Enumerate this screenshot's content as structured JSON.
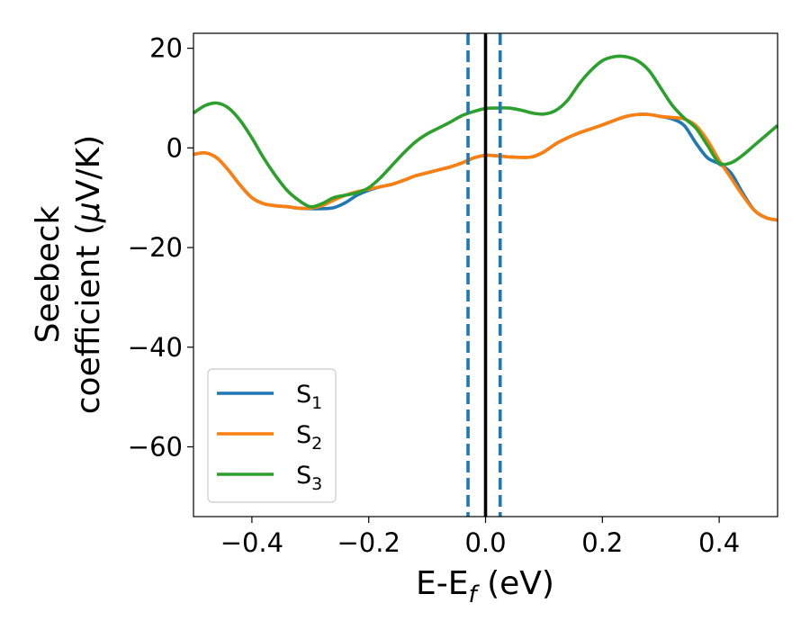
{
  "chart_data": {
    "type": "line",
    "xlabel": "E-E",
    "xlabel_sub": "f",
    "xlabel_unit": " (eV)",
    "ylabel_line1": "Seebeck",
    "ylabel_line2": "coefficient  (",
    "ylabel_mu": "μ",
    "ylabel_unit": "V/K)",
    "xlim": [
      -0.5,
      0.5
    ],
    "ylim": [
      -74,
      23
    ],
    "x_ticks": [
      -0.4,
      -0.2,
      0.0,
      0.2,
      0.4
    ],
    "x_tick_labels": [
      "−0.4",
      "−0.2",
      "0.0",
      "0.2",
      "0.4"
    ],
    "y_ticks": [
      20,
      0,
      -20,
      -40,
      -60
    ],
    "y_tick_labels": [
      "20",
      "0",
      "−20",
      "−40",
      "−60"
    ],
    "grid": false,
    "legend_position": "lower-left",
    "vlines": [
      {
        "x": 0.0,
        "style": "solid",
        "color": "#000000"
      },
      {
        "x": -0.03,
        "style": "dashed",
        "color": "#1f77b4"
      },
      {
        "x": 0.025,
        "style": "dashed",
        "color": "#1f77b4"
      }
    ],
    "series": [
      {
        "name": "S",
        "sub": "1",
        "color": "#1f77b4",
        "points": [
          [
            -0.5,
            -1.3
          ],
          [
            -0.48,
            -1.0
          ],
          [
            -0.46,
            -2.0
          ],
          [
            -0.44,
            -4.5
          ],
          [
            -0.42,
            -7.5
          ],
          [
            -0.4,
            -10.0
          ],
          [
            -0.38,
            -11.2
          ],
          [
            -0.36,
            -11.6
          ],
          [
            -0.34,
            -11.8
          ],
          [
            -0.32,
            -12.1
          ],
          [
            -0.3,
            -12.2
          ],
          [
            -0.28,
            -12.2
          ],
          [
            -0.26,
            -12.0
          ],
          [
            -0.24,
            -11.0
          ],
          [
            -0.22,
            -9.5
          ],
          [
            -0.2,
            -8.5
          ],
          [
            -0.18,
            -7.8
          ],
          [
            -0.16,
            -7.3
          ],
          [
            -0.14,
            -6.5
          ],
          [
            -0.12,
            -5.6
          ],
          [
            -0.1,
            -5.0
          ],
          [
            -0.08,
            -4.4
          ],
          [
            -0.06,
            -3.8
          ],
          [
            -0.04,
            -3.0
          ],
          [
            -0.02,
            -2.0
          ],
          [
            0.0,
            -1.5
          ],
          [
            0.02,
            -1.6
          ],
          [
            0.04,
            -1.8
          ],
          [
            0.06,
            -1.9
          ],
          [
            0.08,
            -1.8
          ],
          [
            0.1,
            -0.8
          ],
          [
            0.12,
            0.8
          ],
          [
            0.14,
            2.0
          ],
          [
            0.16,
            3.0
          ],
          [
            0.18,
            3.8
          ],
          [
            0.2,
            4.6
          ],
          [
            0.22,
            5.5
          ],
          [
            0.24,
            6.3
          ],
          [
            0.26,
            6.7
          ],
          [
            0.28,
            6.7
          ],
          [
            0.3,
            6.3
          ],
          [
            0.32,
            5.8
          ],
          [
            0.34,
            4.5
          ],
          [
            0.36,
            1.0
          ],
          [
            0.38,
            -2.0
          ],
          [
            0.4,
            -3.2
          ],
          [
            0.42,
            -5.0
          ],
          [
            0.44,
            -9.0
          ],
          [
            0.46,
            -12.5
          ],
          [
            0.48,
            -14.0
          ],
          [
            0.5,
            -14.5
          ]
        ]
      },
      {
        "name": "S",
        "sub": "2",
        "color": "#ff7f0e",
        "points": [
          [
            -0.5,
            -1.3
          ],
          [
            -0.48,
            -1.0
          ],
          [
            -0.46,
            -2.0
          ],
          [
            -0.44,
            -4.5
          ],
          [
            -0.42,
            -7.5
          ],
          [
            -0.4,
            -10.0
          ],
          [
            -0.38,
            -11.2
          ],
          [
            -0.36,
            -11.6
          ],
          [
            -0.34,
            -11.8
          ],
          [
            -0.32,
            -12.1
          ],
          [
            -0.3,
            -12.1
          ],
          [
            -0.28,
            -11.6
          ],
          [
            -0.26,
            -10.5
          ],
          [
            -0.24,
            -9.5
          ],
          [
            -0.22,
            -8.8
          ],
          [
            -0.2,
            -8.3
          ],
          [
            -0.18,
            -7.8
          ],
          [
            -0.16,
            -7.3
          ],
          [
            -0.14,
            -6.5
          ],
          [
            -0.12,
            -5.6
          ],
          [
            -0.1,
            -5.0
          ],
          [
            -0.08,
            -4.4
          ],
          [
            -0.06,
            -3.8
          ],
          [
            -0.04,
            -3.0
          ],
          [
            -0.02,
            -2.0
          ],
          [
            0.0,
            -1.5
          ],
          [
            0.02,
            -1.6
          ],
          [
            0.04,
            -1.8
          ],
          [
            0.06,
            -1.9
          ],
          [
            0.08,
            -1.8
          ],
          [
            0.1,
            -0.8
          ],
          [
            0.12,
            0.8
          ],
          [
            0.14,
            2.0
          ],
          [
            0.16,
            3.0
          ],
          [
            0.18,
            3.8
          ],
          [
            0.2,
            4.6
          ],
          [
            0.22,
            5.5
          ],
          [
            0.24,
            6.3
          ],
          [
            0.26,
            6.7
          ],
          [
            0.28,
            6.7
          ],
          [
            0.3,
            6.3
          ],
          [
            0.32,
            6.1
          ],
          [
            0.34,
            5.8
          ],
          [
            0.36,
            4.5
          ],
          [
            0.38,
            1.5
          ],
          [
            0.4,
            -2.5
          ],
          [
            0.42,
            -6.0
          ],
          [
            0.44,
            -9.5
          ],
          [
            0.46,
            -12.5
          ],
          [
            0.48,
            -14.0
          ],
          [
            0.5,
            -14.5
          ]
        ]
      },
      {
        "name": "S",
        "sub": "3",
        "color": "#2ca02c",
        "points": [
          [
            -0.5,
            7.0
          ],
          [
            -0.48,
            8.5
          ],
          [
            -0.46,
            9.0
          ],
          [
            -0.44,
            8.0
          ],
          [
            -0.42,
            5.5
          ],
          [
            -0.4,
            2.0
          ],
          [
            -0.38,
            -2.0
          ],
          [
            -0.36,
            -5.5
          ],
          [
            -0.34,
            -8.5
          ],
          [
            -0.32,
            -10.5
          ],
          [
            -0.3,
            -11.8
          ],
          [
            -0.28,
            -11.2
          ],
          [
            -0.26,
            -10.0
          ],
          [
            -0.24,
            -9.5
          ],
          [
            -0.22,
            -9.0
          ],
          [
            -0.2,
            -8.0
          ],
          [
            -0.18,
            -6.0
          ],
          [
            -0.16,
            -3.5
          ],
          [
            -0.14,
            -1.0
          ],
          [
            -0.12,
            1.2
          ],
          [
            -0.1,
            2.8
          ],
          [
            -0.08,
            4.0
          ],
          [
            -0.06,
            5.2
          ],
          [
            -0.04,
            6.5
          ],
          [
            -0.02,
            7.3
          ],
          [
            0.0,
            7.9
          ],
          [
            0.02,
            8.0
          ],
          [
            0.04,
            8.0
          ],
          [
            0.06,
            7.6
          ],
          [
            0.08,
            7.0
          ],
          [
            0.1,
            6.8
          ],
          [
            0.12,
            7.5
          ],
          [
            0.14,
            9.5
          ],
          [
            0.16,
            12.8
          ],
          [
            0.18,
            15.5
          ],
          [
            0.2,
            17.5
          ],
          [
            0.22,
            18.3
          ],
          [
            0.24,
            18.3
          ],
          [
            0.26,
            17.5
          ],
          [
            0.28,
            15.5
          ],
          [
            0.3,
            12.0
          ],
          [
            0.32,
            8.5
          ],
          [
            0.34,
            6.0
          ],
          [
            0.36,
            4.0
          ],
          [
            0.38,
            0.5
          ],
          [
            0.4,
            -3.0
          ],
          [
            0.42,
            -3.0
          ],
          [
            0.44,
            -1.5
          ],
          [
            0.46,
            0.5
          ],
          [
            0.48,
            2.5
          ],
          [
            0.5,
            4.5
          ]
        ]
      }
    ]
  }
}
